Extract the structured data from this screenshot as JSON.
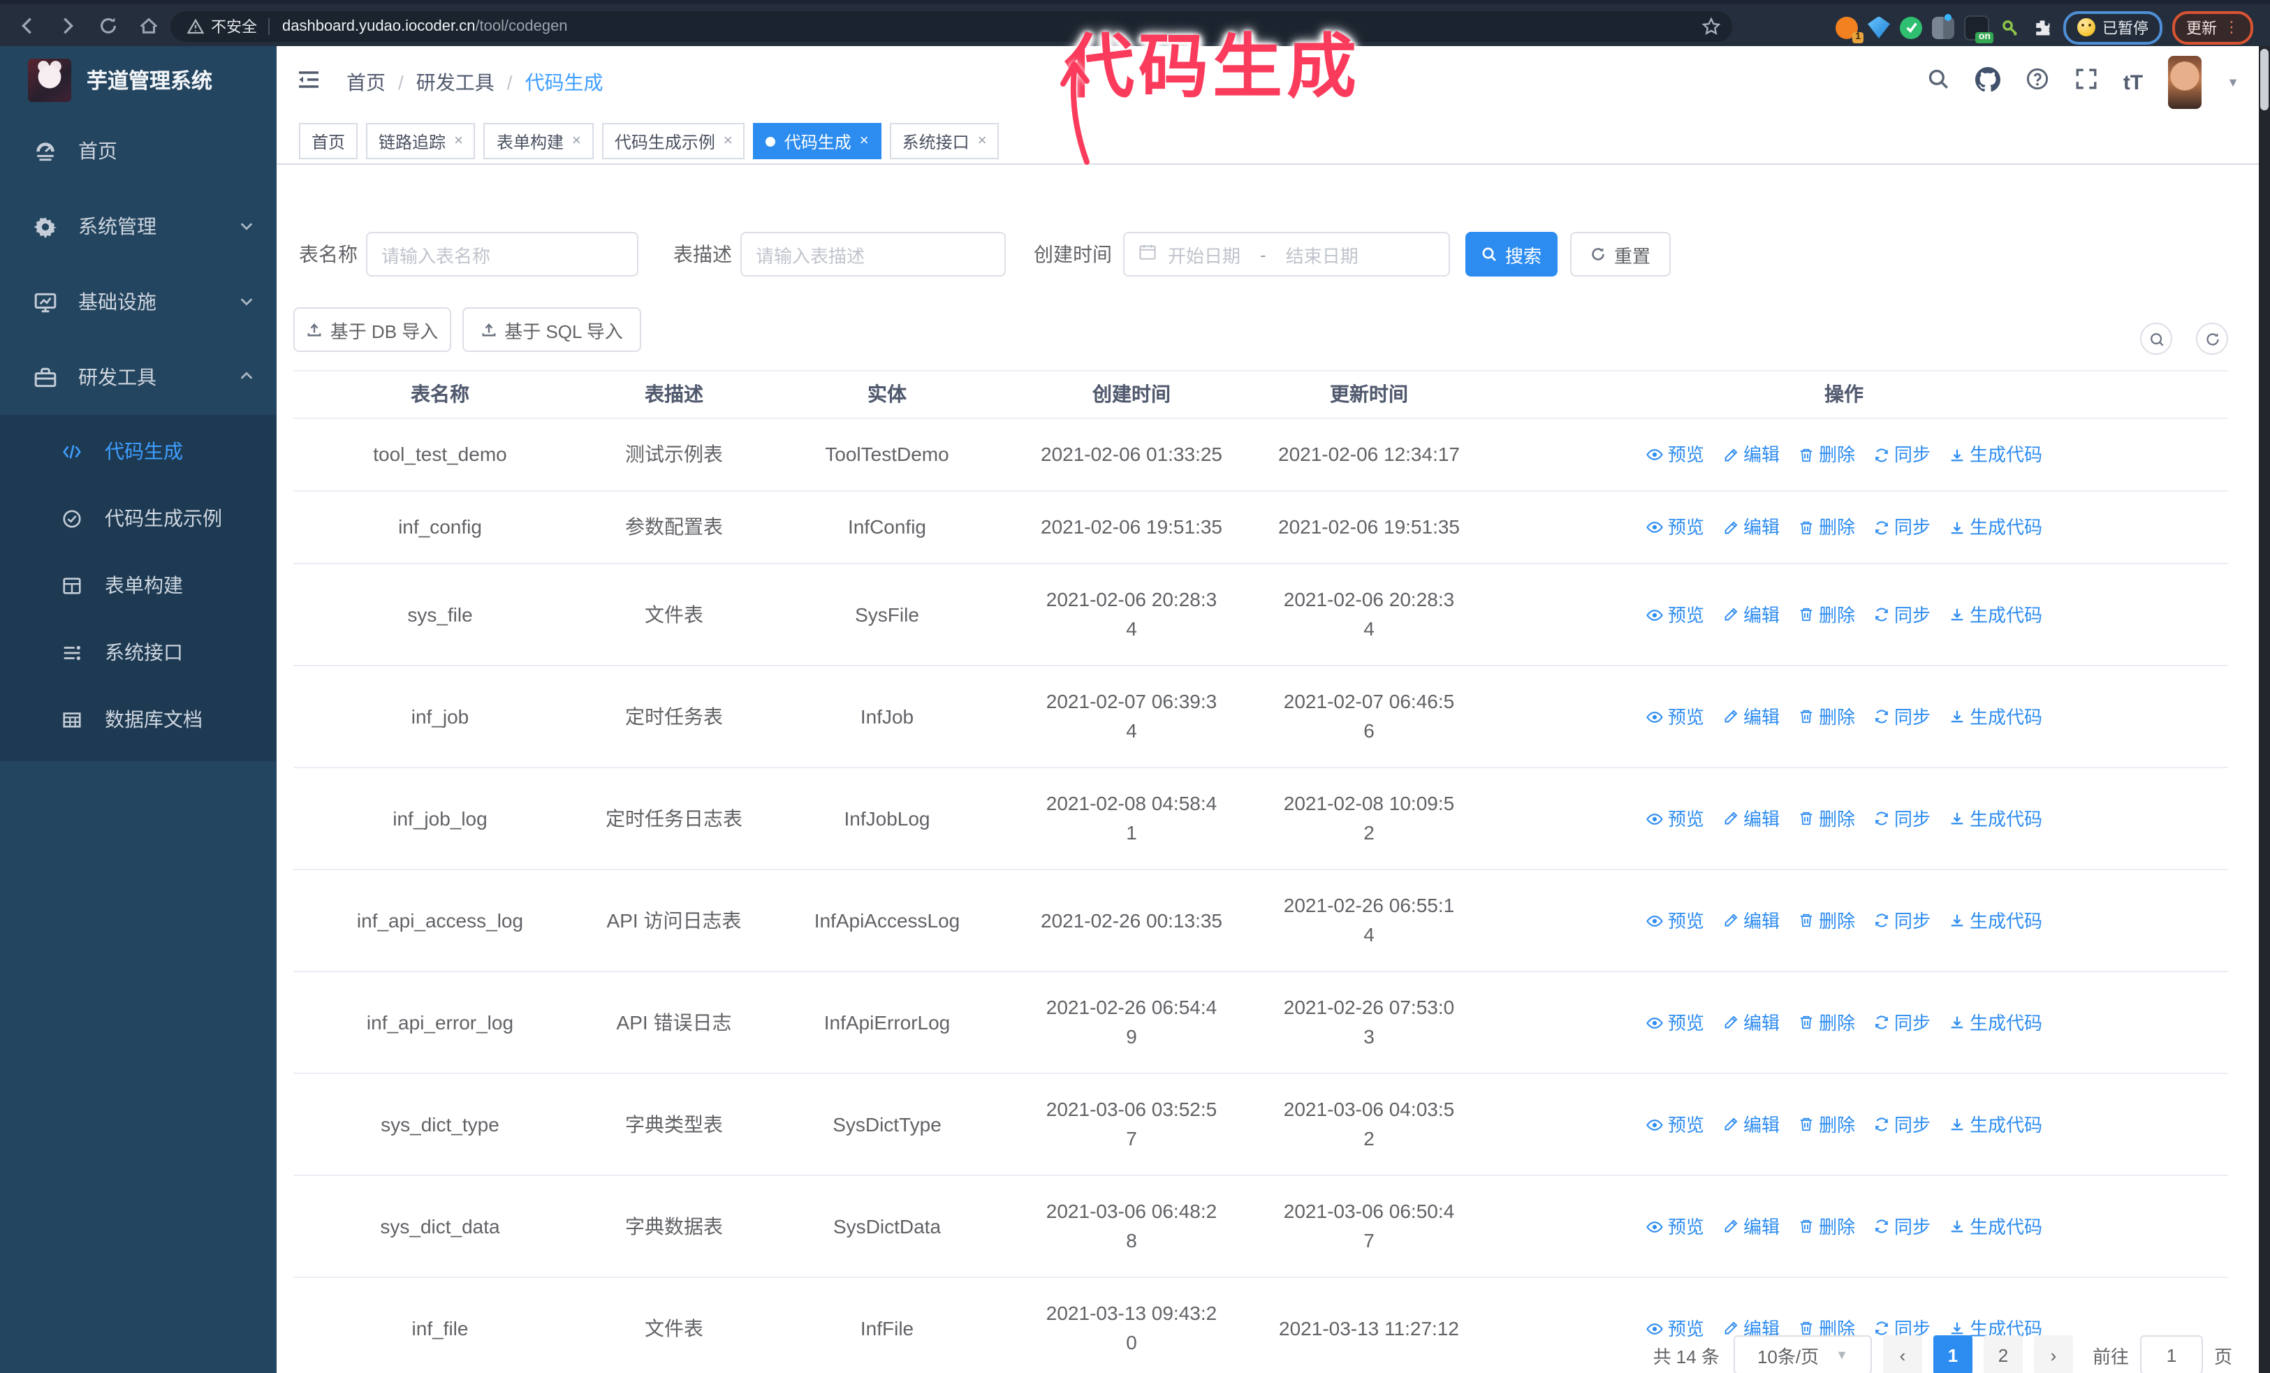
{
  "annotation": {
    "text": "代码生成"
  },
  "browser": {
    "security_label": "不安全",
    "url_host": "dashboard.yudao.iocoder.cn",
    "url_path": "/tool/codegen",
    "ext_badge_count": "1",
    "ext_on_badge": "on",
    "profile_chip_label": "已暂停",
    "update_button_label": "更新"
  },
  "sidebar": {
    "app_title": "芋道管理系统",
    "items": [
      {
        "label": "首页"
      },
      {
        "label": "系统管理"
      },
      {
        "label": "基础设施"
      },
      {
        "label": "研发工具"
      }
    ],
    "submenu": [
      {
        "label": "代码生成",
        "active": true
      },
      {
        "label": "代码生成示例"
      },
      {
        "label": "表单构建"
      },
      {
        "label": "系统接口"
      },
      {
        "label": "数据库文档"
      }
    ]
  },
  "breadcrumb": {
    "items": [
      "首页",
      "研发工具",
      "代码生成"
    ]
  },
  "tabs": [
    {
      "label": "首页",
      "closable": false,
      "active": false
    },
    {
      "label": "链路追踪",
      "closable": true,
      "active": false
    },
    {
      "label": "表单构建",
      "closable": true,
      "active": false
    },
    {
      "label": "代码生成示例",
      "closable": true,
      "active": false
    },
    {
      "label": "代码生成",
      "closable": true,
      "active": true
    },
    {
      "label": "系统接口",
      "closable": true,
      "active": false
    }
  ],
  "filters": {
    "name_label": "表名称",
    "name_placeholder": "请输入表名称",
    "desc_label": "表描述",
    "desc_placeholder": "请输入表描述",
    "time_label": "创建时间",
    "date_start_placeholder": "开始日期",
    "date_separator": "-",
    "date_end_placeholder": "结束日期",
    "search_label": "搜索",
    "reset_label": "重置"
  },
  "toolbar": {
    "import_db_label": "基于 DB 导入",
    "import_sql_label": "基于 SQL 导入"
  },
  "table": {
    "headers": [
      "表名称",
      "表描述",
      "实体",
      "创建时间",
      "更新时间",
      "操作"
    ],
    "actions": [
      {
        "label": "预览",
        "icon": "eye"
      },
      {
        "label": "编辑",
        "icon": "edit"
      },
      {
        "label": "删除",
        "icon": "delete"
      },
      {
        "label": "同步",
        "icon": "sync"
      },
      {
        "label": "生成代码",
        "icon": "download"
      }
    ],
    "rows": [
      {
        "name": "tool_test_demo",
        "desc": "测试示例表",
        "entity": "ToolTestDemo",
        "created": "2021-02-06 01:33:25",
        "updated": "2021-02-06 12:34:17"
      },
      {
        "name": "inf_config",
        "desc": "参数配置表",
        "entity": "InfConfig",
        "created": "2021-02-06 19:51:35",
        "updated": "2021-02-06 19:51:35"
      },
      {
        "name": "sys_file",
        "desc": "文件表",
        "entity": "SysFile",
        "created": "2021-02-06 20:28:3\n4",
        "updated": "2021-02-06 20:28:3\n4"
      },
      {
        "name": "inf_job",
        "desc": "定时任务表",
        "entity": "InfJob",
        "created": "2021-02-07 06:39:3\n4",
        "updated": "2021-02-07 06:46:5\n6"
      },
      {
        "name": "inf_job_log",
        "desc": "定时任务日志表",
        "entity": "InfJobLog",
        "created": "2021-02-08 04:58:4\n1",
        "updated": "2021-02-08 10:09:5\n2"
      },
      {
        "name": "inf_api_access_log",
        "desc": "API 访问日志表",
        "entity": "InfApiAccessLog",
        "created": "2021-02-26 00:13:35",
        "updated": "2021-02-26 06:55:1\n4"
      },
      {
        "name": "inf_api_error_log",
        "desc": "API 错误日志",
        "entity": "InfApiErrorLog",
        "created": "2021-02-26 06:54:4\n9",
        "updated": "2021-02-26 07:53:0\n3"
      },
      {
        "name": "sys_dict_type",
        "desc": "字典类型表",
        "entity": "SysDictType",
        "created": "2021-03-06 03:52:5\n7",
        "updated": "2021-03-06 04:03:5\n2"
      },
      {
        "name": "sys_dict_data",
        "desc": "字典数据表",
        "entity": "SysDictData",
        "created": "2021-03-06 06:48:2\n8",
        "updated": "2021-03-06 06:50:4\n7"
      },
      {
        "name": "inf_file",
        "desc": "文件表",
        "entity": "InfFile",
        "created": "2021-03-13 09:43:2\n0",
        "updated": "2021-03-13 11:27:12"
      }
    ]
  },
  "pagination": {
    "total_label": "共 14 条",
    "page_size_label": "10条/页",
    "pages": [
      "1",
      "2"
    ],
    "active_page": "1",
    "goto_label": "前往",
    "goto_value": "1",
    "goto_suffix": "页"
  },
  "colors": {
    "primary": "#2d8cf0",
    "sidebar_bg": "#24455f",
    "submenu_bg": "#1d3a52",
    "annotation": "#fb3b5c"
  }
}
